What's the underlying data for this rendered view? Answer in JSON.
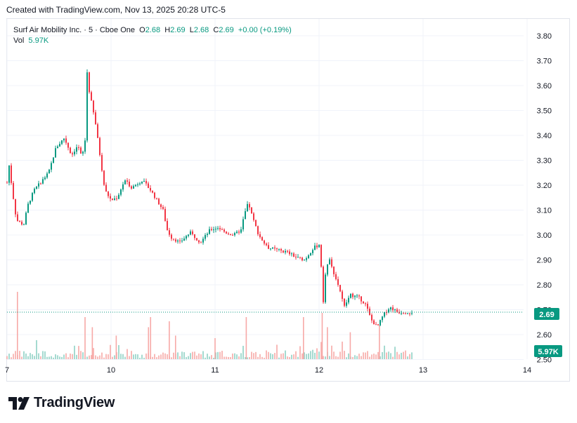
{
  "header": {
    "text": "Created with TradingView.com, Nov 13, 2025 20:28 UTC-5"
  },
  "legend": {
    "symbol": "Surf Air Mobility Inc. · 5 · Cboe One",
    "o_label": "O",
    "o_value": "2.68",
    "h_label": "H",
    "h_value": "2.69",
    "l_label": "L",
    "l_value": "2.68",
    "c_label": "C",
    "c_value": "2.69",
    "change": "+0.00 (+0.19%)",
    "vol_label": "Vol",
    "vol_value": "5.97K"
  },
  "badges": {
    "price": "2.69",
    "volume": "5.97K"
  },
  "brand": {
    "name": "TradingView"
  },
  "colors": {
    "up": "#089981",
    "down": "#f23645",
    "up_vol": "#8fd1c5",
    "down_vol": "#f7a9a7",
    "grid": "#f0f3fa",
    "badge": "#089981"
  },
  "chart_data": {
    "type": "candlestick",
    "y_ticks": [
      "3.80",
      "3.70",
      "3.60",
      "3.50",
      "3.40",
      "3.30",
      "3.20",
      "3.10",
      "3.00",
      "2.90",
      "2.80",
      "2.70",
      "2.60",
      "2.50"
    ],
    "x_ticks": [
      "7",
      "10",
      "11",
      "12",
      "13",
      "14"
    ],
    "ylim": [
      2.5,
      3.83
    ],
    "last_price": 2.69,
    "price_path": [
      [
        0,
        3.21
      ],
      [
        0.02,
        3.28
      ],
      [
        0.05,
        3.18
      ],
      [
        0.09,
        3.06
      ],
      [
        0.16,
        3.04
      ],
      [
        0.2,
        3.12
      ],
      [
        0.26,
        3.18
      ],
      [
        0.34,
        3.22
      ],
      [
        0.4,
        3.25
      ],
      [
        0.47,
        3.35
      ],
      [
        0.55,
        3.39
      ],
      [
        0.62,
        3.32
      ],
      [
        0.68,
        3.36
      ],
      [
        0.72,
        3.31
      ],
      [
        0.75,
        3.38
      ],
      [
        0.76,
        3.71
      ],
      [
        0.78,
        3.6
      ],
      [
        0.85,
        3.45
      ],
      [
        0.9,
        3.3
      ],
      [
        0.94,
        3.18
      ],
      [
        1.0,
        3.14
      ],
      [
        1.06,
        3.15
      ],
      [
        1.13,
        3.22
      ],
      [
        1.2,
        3.19
      ],
      [
        1.3,
        3.22
      ],
      [
        1.38,
        3.18
      ],
      [
        1.44,
        3.14
      ],
      [
        1.5,
        3.1
      ],
      [
        1.54,
        3.02
      ],
      [
        1.58,
        2.99
      ],
      [
        1.66,
        2.97
      ],
      [
        1.76,
        3.01
      ],
      [
        1.86,
        2.97
      ],
      [
        1.95,
        3.02
      ],
      [
        2.03,
        3.03
      ],
      [
        2.1,
        3.01
      ],
      [
        2.18,
        3.0
      ],
      [
        2.25,
        3.02
      ],
      [
        2.28,
        3.08
      ],
      [
        2.32,
        3.13
      ],
      [
        2.36,
        3.07
      ],
      [
        2.42,
        3.0
      ],
      [
        2.5,
        2.95
      ],
      [
        2.6,
        2.94
      ],
      [
        2.7,
        2.93
      ],
      [
        2.78,
        2.91
      ],
      [
        2.86,
        2.9
      ],
      [
        2.95,
        2.95
      ],
      [
        3.0,
        2.96
      ],
      [
        3.02,
        2.88
      ],
      [
        3.03,
        2.68
      ],
      [
        3.06,
        2.84
      ],
      [
        3.1,
        2.91
      ],
      [
        3.14,
        2.85
      ],
      [
        3.2,
        2.78
      ],
      [
        3.24,
        2.71
      ],
      [
        3.3,
        2.76
      ],
      [
        3.38,
        2.75
      ],
      [
        3.45,
        2.72
      ],
      [
        3.5,
        2.66
      ],
      [
        3.56,
        2.63
      ],
      [
        3.62,
        2.68
      ],
      [
        3.68,
        2.71
      ],
      [
        3.76,
        2.69
      ],
      [
        3.9,
        2.69
      ]
    ],
    "volume_spikes": [
      [
        0.1,
        0.8
      ],
      [
        0.75,
        0.5
      ],
      [
        0.82,
        0.38
      ],
      [
        1.05,
        0.28
      ],
      [
        1.36,
        0.38
      ],
      [
        1.38,
        0.5
      ],
      [
        1.56,
        0.45
      ],
      [
        1.62,
        0.28
      ],
      [
        2.0,
        0.25
      ],
      [
        2.3,
        0.5
      ],
      [
        2.85,
        0.5
      ],
      [
        3.03,
        0.55
      ],
      [
        3.08,
        0.38
      ],
      [
        3.3,
        0.32
      ],
      [
        3.58,
        0.4
      ]
    ]
  }
}
